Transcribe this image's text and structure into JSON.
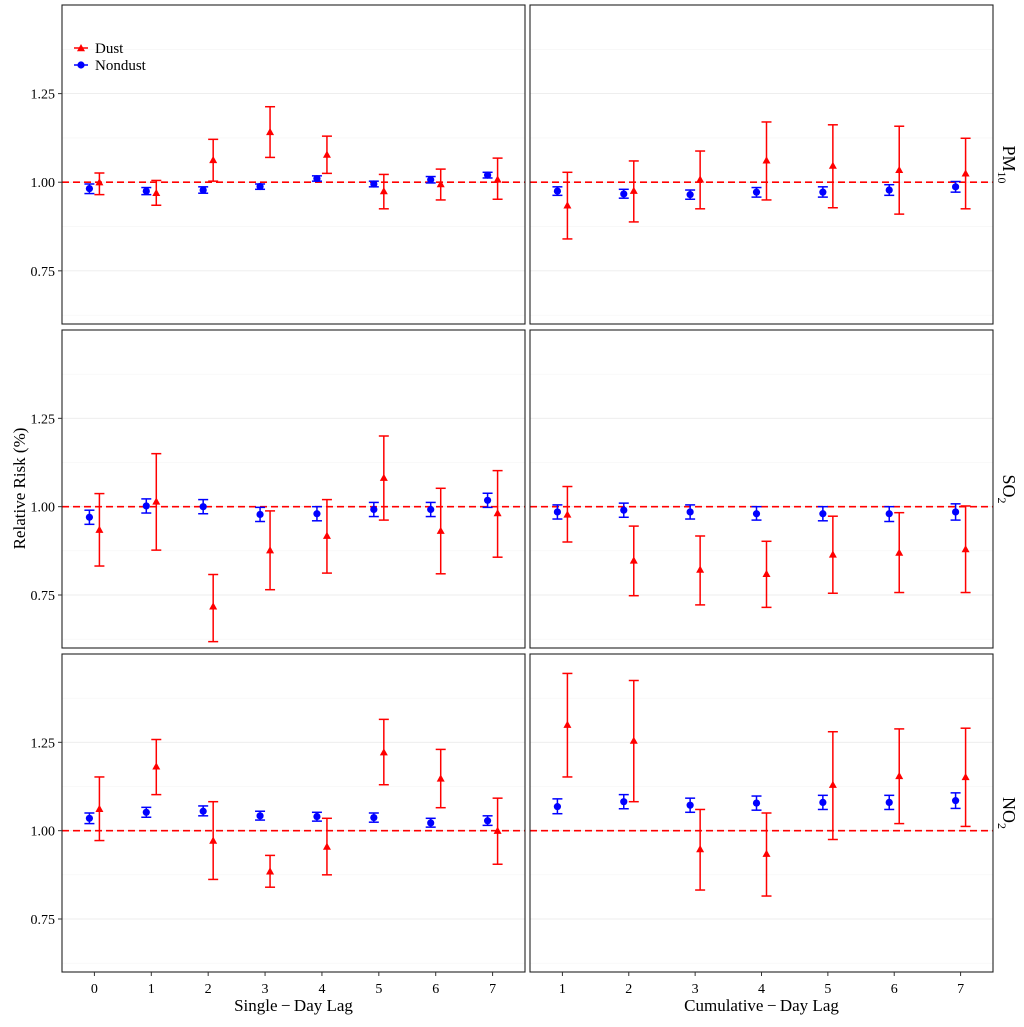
{
  "chart_data": {
    "type": "scatter",
    "ylabel": "Relative Risk (%)",
    "xlabel_left": "Single − Day Lag",
    "xlabel_right": "Cumulative − Day Lag",
    "legend": {
      "position": "top-left",
      "entries": [
        {
          "name": "Dust",
          "color": "#ff0000",
          "marker": "triangle"
        },
        {
          "name": "Nondust",
          "color": "#0000ff",
          "marker": "circle"
        }
      ]
    },
    "ylim": [
      0.6,
      1.5
    ],
    "y_ticks": [
      "0.75",
      "1.00",
      "1.25"
    ],
    "y_tick_values": [
      0.75,
      1.0,
      1.25
    ],
    "reference_line": 1.0,
    "reference_color": "#ff0000",
    "grid": true,
    "rows": [
      {
        "label_main": "PM",
        "label_sub": "10"
      },
      {
        "label_main": "SO",
        "label_sub": "2"
      },
      {
        "label_main": "NO",
        "label_sub": "2"
      }
    ],
    "columns": [
      {
        "lags": [
          0,
          1,
          2,
          3,
          4,
          5,
          6,
          7
        ],
        "tick_labels": [
          "0",
          "1",
          "2",
          "3",
          "4",
          "5",
          "6",
          "7"
        ]
      },
      {
        "lags": [
          1,
          2,
          3,
          4,
          5,
          6,
          7
        ],
        "tick_labels": [
          "1",
          "2",
          "3",
          "4",
          "5",
          "6",
          "7"
        ]
      }
    ],
    "panels": [
      {
        "row": 0,
        "col": 0,
        "dust": [
          [
            1.0,
            0.965,
            1.026
          ],
          [
            0.97,
            0.935,
            1.005
          ],
          [
            1.063,
            1.003,
            1.121
          ],
          [
            1.142,
            1.07,
            1.213
          ],
          [
            1.078,
            1.025,
            1.13
          ],
          [
            0.975,
            0.925,
            1.022
          ],
          [
            0.995,
            0.95,
            1.037
          ],
          [
            1.008,
            0.952,
            1.068
          ]
        ],
        "nondust": [
          [
            0.982,
            0.968,
            0.995
          ],
          [
            0.975,
            0.965,
            0.985
          ],
          [
            0.978,
            0.969,
            0.987
          ],
          [
            0.988,
            0.98,
            0.995
          ],
          [
            1.01,
            1.003,
            1.018
          ],
          [
            0.995,
            0.987,
            1.003
          ],
          [
            1.007,
            0.998,
            1.016
          ],
          [
            1.02,
            1.012,
            1.028
          ]
        ]
      },
      {
        "row": 0,
        "col": 1,
        "dust": [
          [
            0.935,
            0.84,
            1.028
          ],
          [
            0.976,
            0.888,
            1.06
          ],
          [
            1.008,
            0.925,
            1.088
          ],
          [
            1.062,
            0.95,
            1.17
          ],
          [
            1.047,
            0.928,
            1.162
          ],
          [
            1.035,
            0.91,
            1.158
          ],
          [
            1.025,
            0.925,
            1.124
          ]
        ],
        "nondust": [
          [
            0.975,
            0.963,
            0.987
          ],
          [
            0.967,
            0.955,
            0.98
          ],
          [
            0.965,
            0.952,
            0.978
          ],
          [
            0.972,
            0.958,
            0.985
          ],
          [
            0.972,
            0.958,
            0.987
          ],
          [
            0.978,
            0.963,
            0.993
          ],
          [
            0.987,
            0.972,
            1.002
          ]
        ]
      },
      {
        "row": 1,
        "col": 0,
        "dust": [
          [
            0.935,
            0.832,
            1.037
          ],
          [
            1.015,
            0.877,
            1.15
          ],
          [
            0.718,
            0.618,
            0.808
          ],
          [
            0.877,
            0.765,
            0.988
          ],
          [
            0.918,
            0.812,
            1.02
          ],
          [
            1.082,
            0.962,
            1.2
          ],
          [
            0.932,
            0.81,
            1.052
          ],
          [
            0.982,
            0.857,
            1.102
          ]
        ],
        "nondust": [
          [
            0.97,
            0.95,
            0.99
          ],
          [
            1.002,
            0.982,
            1.022
          ],
          [
            1.0,
            0.98,
            1.02
          ],
          [
            0.978,
            0.958,
            0.998
          ],
          [
            0.98,
            0.96,
            1.0
          ],
          [
            0.992,
            0.972,
            1.012
          ],
          [
            0.992,
            0.972,
            1.012
          ],
          [
            1.018,
            0.998,
            1.038
          ]
        ]
      },
      {
        "row": 1,
        "col": 1,
        "dust": [
          [
            0.978,
            0.9,
            1.057
          ],
          [
            0.848,
            0.748,
            0.945
          ],
          [
            0.822,
            0.722,
            0.917
          ],
          [
            0.81,
            0.715,
            0.902
          ],
          [
            0.865,
            0.755,
            0.973
          ],
          [
            0.87,
            0.757,
            0.983
          ],
          [
            0.88,
            0.757,
            1.002
          ]
        ],
        "nondust": [
          [
            0.985,
            0.965,
            1.005
          ],
          [
            0.99,
            0.97,
            1.01
          ],
          [
            0.985,
            0.965,
            1.005
          ],
          [
            0.98,
            0.962,
            1.0
          ],
          [
            0.98,
            0.96,
            1.0
          ],
          [
            0.98,
            0.958,
            1.0
          ],
          [
            0.985,
            0.962,
            1.008
          ]
        ]
      },
      {
        "row": 2,
        "col": 0,
        "dust": [
          [
            1.062,
            0.972,
            1.152
          ],
          [
            1.182,
            1.102,
            1.258
          ],
          [
            0.972,
            0.862,
            1.082
          ],
          [
            0.885,
            0.84,
            0.93
          ],
          [
            0.955,
            0.875,
            1.035
          ],
          [
            1.222,
            1.13,
            1.315
          ],
          [
            1.148,
            1.065,
            1.23
          ],
          [
            1.0,
            0.905,
            1.092
          ]
        ],
        "nondust": [
          [
            1.035,
            1.02,
            1.05
          ],
          [
            1.052,
            1.038,
            1.066
          ],
          [
            1.055,
            1.042,
            1.07
          ],
          [
            1.042,
            1.03,
            1.055
          ],
          [
            1.04,
            1.027,
            1.052
          ],
          [
            1.037,
            1.024,
            1.05
          ],
          [
            1.022,
            1.01,
            1.035
          ],
          [
            1.028,
            1.015,
            1.042
          ]
        ]
      },
      {
        "row": 2,
        "col": 1,
        "dust": [
          [
            1.3,
            1.152,
            1.445
          ],
          [
            1.255,
            1.082,
            1.425
          ],
          [
            0.948,
            0.832,
            1.06
          ],
          [
            0.935,
            0.815,
            1.05
          ],
          [
            1.13,
            0.975,
            1.28
          ],
          [
            1.155,
            1.02,
            1.288
          ],
          [
            1.152,
            1.012,
            1.29
          ]
        ],
        "nondust": [
          [
            1.068,
            1.048,
            1.09
          ],
          [
            1.082,
            1.062,
            1.102
          ],
          [
            1.072,
            1.052,
            1.092
          ],
          [
            1.078,
            1.058,
            1.098
          ],
          [
            1.08,
            1.06,
            1.1
          ],
          [
            1.08,
            1.06,
            1.1
          ],
          [
            1.085,
            1.063,
            1.107
          ]
        ]
      }
    ]
  }
}
